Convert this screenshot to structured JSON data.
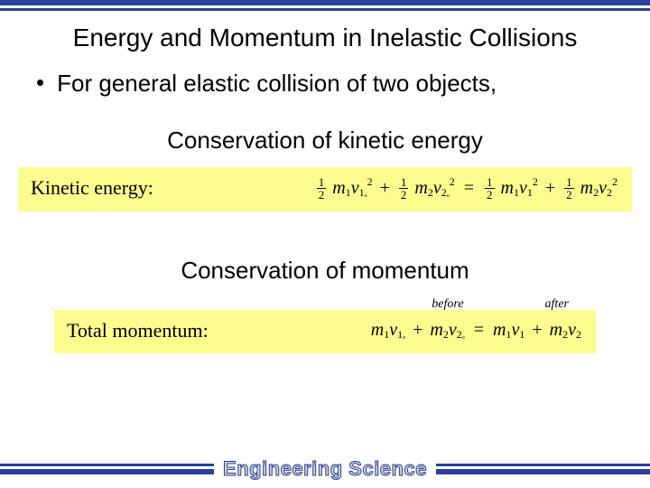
{
  "slide": {
    "title": "Energy and Momentum in Inelastic Collisions",
    "bullet_text": "For general elastic collision of two objects,",
    "subheading_ke": "Conservation of kinetic energy",
    "subheading_p": "Conservation of momentum"
  },
  "equations": {
    "ke_label": "Kinetic energy:",
    "p_label": "Total momentum:",
    "annot_before": "before",
    "annot_after": "after"
  },
  "footer": {
    "brand": "Engineering Science"
  },
  "colors": {
    "rule_blue": "#2a3f9e",
    "highlight_bg": "#fdfd8f",
    "footer_text_fill": "#d0d0d0"
  }
}
